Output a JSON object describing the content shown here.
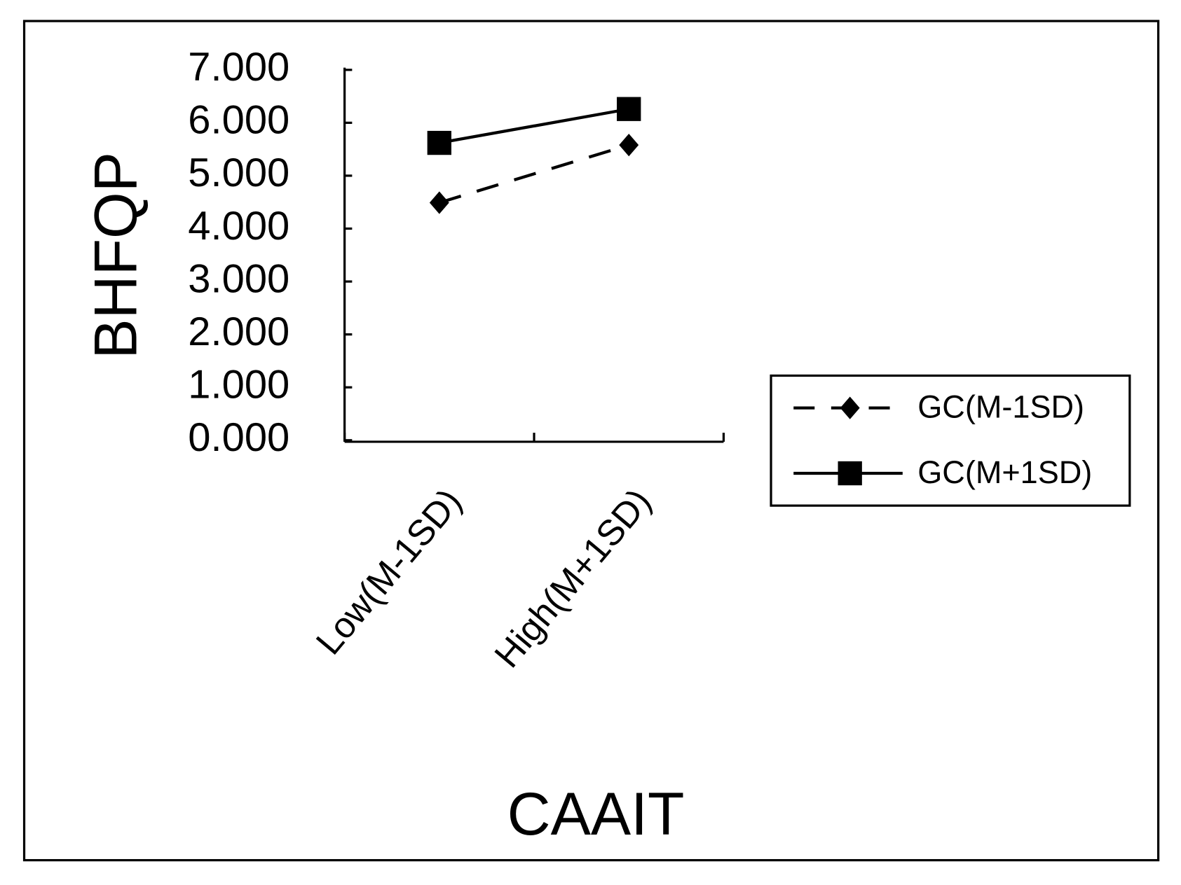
{
  "chart_data": {
    "type": "line",
    "xlabel": "CAAIT",
    "ylabel": "BHFQP",
    "categories": [
      "Low(M-1SD)",
      "High(M+1SD)"
    ],
    "series": [
      {
        "name": "GC(M-1SD)",
        "color": "#000000",
        "linestyle": "dashed",
        "marker": "diamond",
        "values": [
          4.49,
          5.58
        ]
      },
      {
        "name": "GC(M+1SD)",
        "color": "#000000",
        "linestyle": "solid",
        "marker": "square",
        "values": [
          5.62,
          6.26
        ]
      }
    ],
    "ylim": [
      0,
      7
    ],
    "yticks": [
      {
        "value": 0,
        "label": "0.000"
      },
      {
        "value": 1,
        "label": "1.000"
      },
      {
        "value": 2,
        "label": "2.000"
      },
      {
        "value": 3,
        "label": "3.000"
      },
      {
        "value": 4,
        "label": "4.000"
      },
      {
        "value": 5,
        "label": "5.000"
      },
      {
        "value": 6,
        "label": "6.000"
      },
      {
        "value": 7,
        "label": "7.000"
      }
    ],
    "grid": false,
    "legend": "right"
  }
}
